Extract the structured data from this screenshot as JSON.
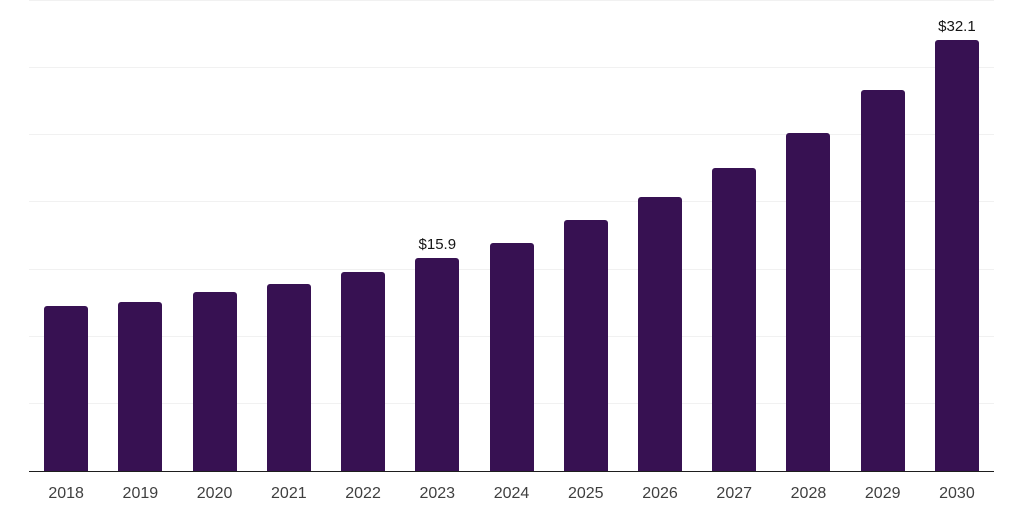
{
  "chart": {
    "background_color": "#ffffff",
    "bar_color": "#371152",
    "gridline_color": "#f1f1f1",
    "axis_line_color": "#1e1e1e",
    "tick_label_color": "#3f3f3f",
    "data_label_color": "#141414"
  },
  "chart_data": {
    "type": "bar",
    "title": "",
    "xlabel": "",
    "ylabel": "",
    "categories": [
      "2018",
      "2019",
      "2020",
      "2021",
      "2022",
      "2023",
      "2024",
      "2025",
      "2026",
      "2027",
      "2028",
      "2029",
      "2030"
    ],
    "values": [
      12.3,
      12.6,
      13.3,
      13.9,
      14.8,
      15.9,
      17.0,
      18.7,
      20.4,
      22.6,
      25.2,
      28.4,
      32.1
    ],
    "data_labels": [
      null,
      null,
      null,
      null,
      null,
      "$15.9",
      null,
      null,
      null,
      null,
      null,
      null,
      "$32.1"
    ],
    "ylim": [
      0,
      35
    ],
    "gridline_step": 5,
    "grid": "horizontal-only",
    "legend": "none",
    "y_axis_tick_labels_shown": false,
    "currency_unit": "USD"
  }
}
